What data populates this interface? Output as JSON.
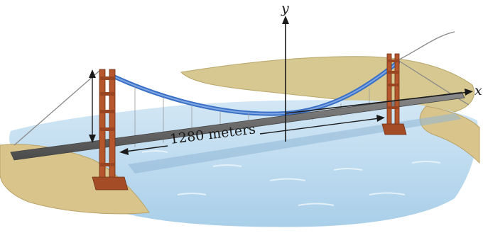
{
  "figure": {
    "span_label": "1280 meters",
    "x_axis_label": "x",
    "y_axis_label": "y"
  },
  "colors": {
    "cable": "#3a6fc6",
    "tower": "#b5562c",
    "water": "#b9d8ee",
    "land": "#d8c48e",
    "deck": "#6e6e6e"
  }
}
